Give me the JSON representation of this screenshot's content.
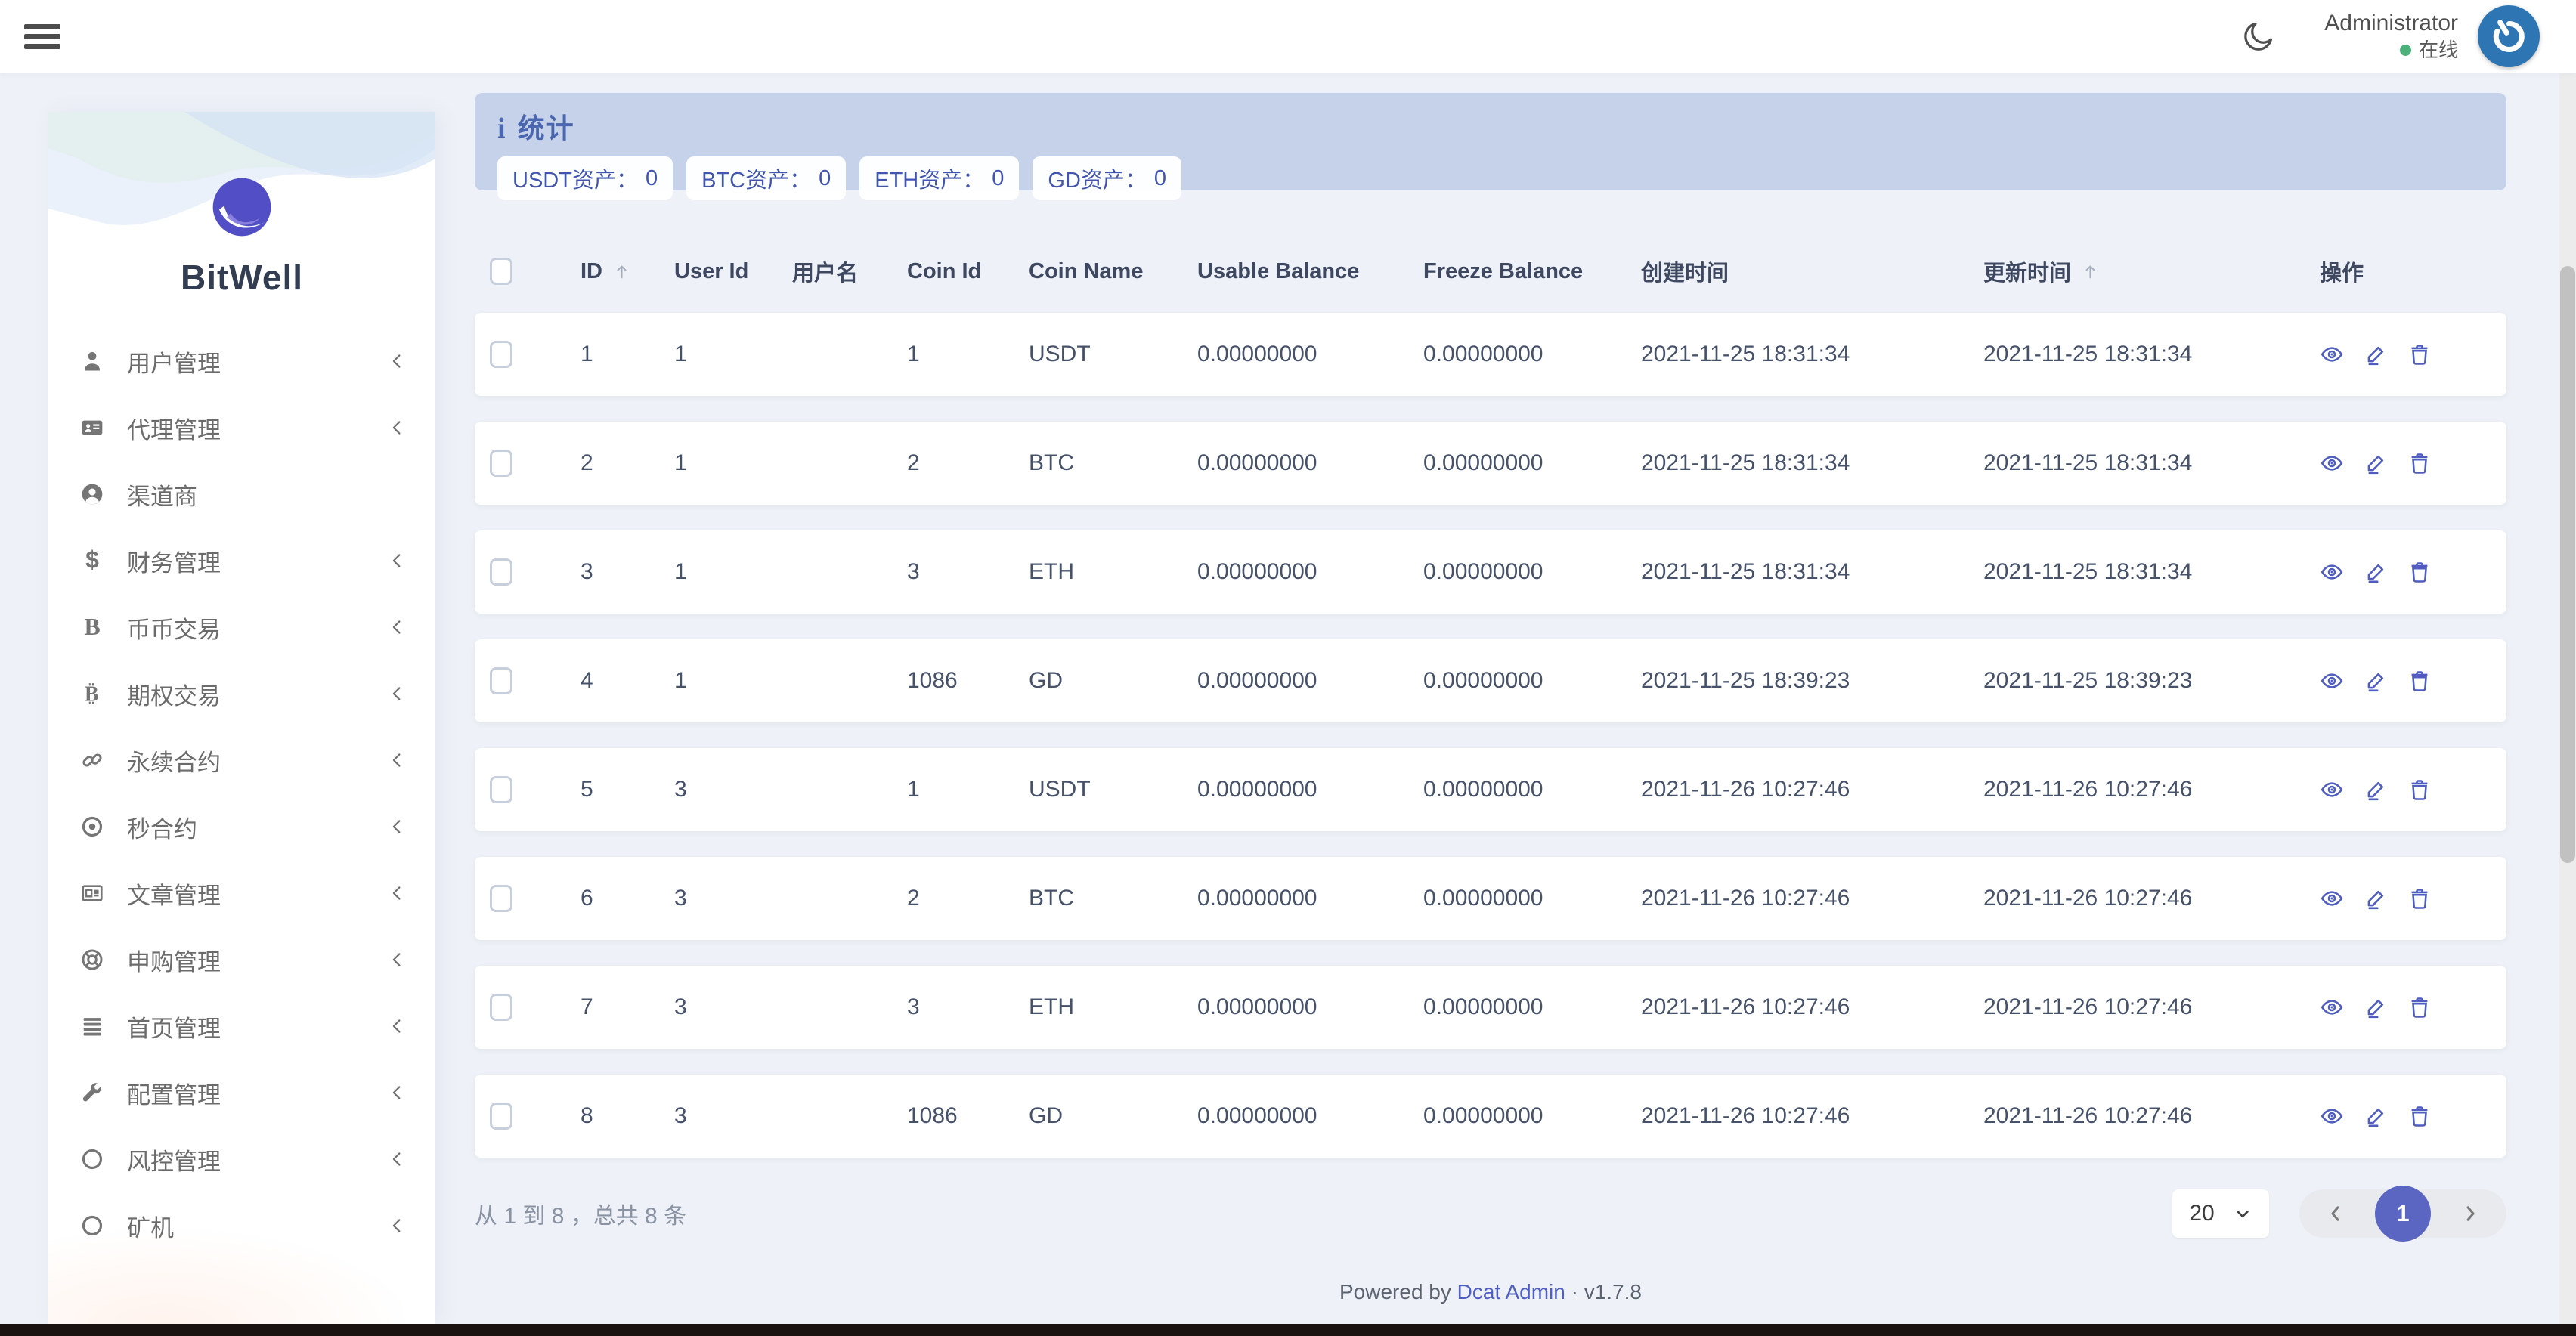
{
  "colors": {
    "accent": "#4f5dc0",
    "stats_panel": "#c6d1ea",
    "online": "#4cb07a",
    "avatar_bg": "#2e75b4",
    "brand_circle": "#524fc6",
    "active_page": "#5a66c2"
  },
  "topbar": {
    "user_name": "Administrator",
    "status_text": "在线"
  },
  "sidebar": {
    "brand": "BitWell",
    "items": [
      {
        "label": "用户管理",
        "icon": "user-md-icon",
        "chevron": true
      },
      {
        "label": "代理管理",
        "icon": "address-card-icon",
        "chevron": true
      },
      {
        "label": "渠道商",
        "icon": "user-circle-icon",
        "chevron": false
      },
      {
        "label": "财务管理",
        "icon": "dollar-icon",
        "chevron": true
      },
      {
        "label": "币币交易",
        "icon": "letter-b-icon",
        "chevron": true
      },
      {
        "label": "期权交易",
        "icon": "bitcoin-icon",
        "chevron": true
      },
      {
        "label": "永续合约",
        "icon": "link-icon",
        "chevron": true
      },
      {
        "label": "秒合约",
        "icon": "dot-circle-icon",
        "chevron": true
      },
      {
        "label": "文章管理",
        "icon": "newspaper-icon",
        "chevron": true
      },
      {
        "label": "申购管理",
        "icon": "life-ring-icon",
        "chevron": true
      },
      {
        "label": "首页管理",
        "icon": "bars-icon",
        "chevron": true
      },
      {
        "label": "配置管理",
        "icon": "wrench-icon",
        "chevron": true
      },
      {
        "label": "风控管理",
        "icon": "circle-icon",
        "chevron": true
      },
      {
        "label": "矿机",
        "icon": "circle-icon",
        "chevron": true
      }
    ]
  },
  "stats": {
    "title": "统计",
    "badges": [
      {
        "label": "USDT资产：",
        "value": "0"
      },
      {
        "label": "BTC资产：",
        "value": "0"
      },
      {
        "label": "ETH资产：",
        "value": "0"
      },
      {
        "label": "GD资产：",
        "value": "0"
      }
    ]
  },
  "table": {
    "columns": [
      {
        "label": "",
        "type": "checkbox"
      },
      {
        "label": "ID",
        "sortable": true
      },
      {
        "label": "User Id"
      },
      {
        "label": "用户名"
      },
      {
        "label": "Coin Id"
      },
      {
        "label": "Coin Name"
      },
      {
        "label": "Usable Balance"
      },
      {
        "label": "Freeze Balance"
      },
      {
        "label": "创建时间"
      },
      {
        "label": "更新时间",
        "sortable": true
      },
      {
        "label": "操作"
      }
    ],
    "rows": [
      [
        "1",
        "1",
        "",
        "1",
        "USDT",
        "0.00000000",
        "0.00000000",
        "2021-11-25 18:31:34",
        "2021-11-25 18:31:34"
      ],
      [
        "2",
        "1",
        "",
        "2",
        "BTC",
        "0.00000000",
        "0.00000000",
        "2021-11-25 18:31:34",
        "2021-11-25 18:31:34"
      ],
      [
        "3",
        "1",
        "",
        "3",
        "ETH",
        "0.00000000",
        "0.00000000",
        "2021-11-25 18:31:34",
        "2021-11-25 18:31:34"
      ],
      [
        "4",
        "1",
        "",
        "1086",
        "GD",
        "0.00000000",
        "0.00000000",
        "2021-11-25 18:39:23",
        "2021-11-25 18:39:23"
      ],
      [
        "5",
        "3",
        "",
        "1",
        "USDT",
        "0.00000000",
        "0.00000000",
        "2021-11-26 10:27:46",
        "2021-11-26 10:27:46"
      ],
      [
        "6",
        "3",
        "",
        "2",
        "BTC",
        "0.00000000",
        "0.00000000",
        "2021-11-26 10:27:46",
        "2021-11-26 10:27:46"
      ],
      [
        "7",
        "3",
        "",
        "3",
        "ETH",
        "0.00000000",
        "0.00000000",
        "2021-11-26 10:27:46",
        "2021-11-26 10:27:46"
      ],
      [
        "8",
        "3",
        "",
        "1086",
        "GD",
        "0.00000000",
        "0.00000000",
        "2021-11-26 10:27:46",
        "2021-11-26 10:27:46"
      ]
    ],
    "actions": [
      "view",
      "edit",
      "delete"
    ]
  },
  "pagination": {
    "summary": "从 1 到 8 ，总共 8 条",
    "page_size": "20",
    "current_page": "1"
  },
  "footer": {
    "powered_by": "Powered by",
    "brand_link": "Dcat Admin",
    "separator": "·",
    "version": "v1.7.8"
  }
}
